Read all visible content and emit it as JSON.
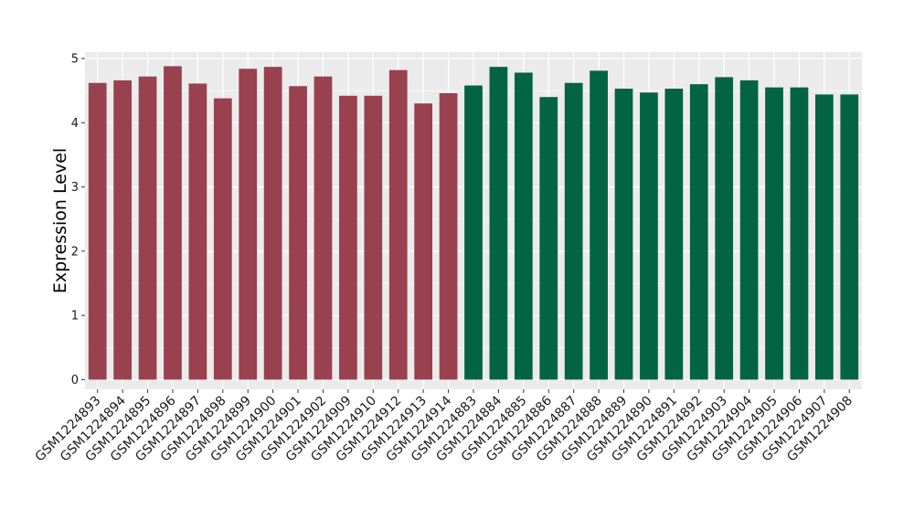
{
  "chart_data": {
    "type": "bar",
    "title": "",
    "xlabel": "",
    "ylabel": "Expression Level",
    "ylim": [
      -0.15,
      5.1
    ],
    "yticks": [
      0,
      1,
      2,
      3,
      4,
      5
    ],
    "grid": true,
    "legend": "none",
    "categories": [
      "GSM1224893",
      "GSM1224894",
      "GSM1224895",
      "GSM1224896",
      "GSM1224897",
      "GSM1224898",
      "GSM1224899",
      "GSM1224900",
      "GSM1224901",
      "GSM1224902",
      "GSM1224909",
      "GSM1224910",
      "GSM1224912",
      "GSM1224913",
      "GSM1224914",
      "GSM1224883",
      "GSM1224884",
      "GSM1224885",
      "GSM1224886",
      "GSM1224887",
      "GSM1224888",
      "GSM1224889",
      "GSM1224890",
      "GSM1224891",
      "GSM1224892",
      "GSM1224903",
      "GSM1224904",
      "GSM1224905",
      "GSM1224906",
      "GSM1224907",
      "GSM1224908"
    ],
    "values": [
      4.62,
      4.66,
      4.72,
      4.88,
      4.61,
      4.38,
      4.84,
      4.87,
      4.57,
      4.72,
      4.42,
      4.42,
      4.82,
      4.3,
      4.46,
      4.58,
      4.87,
      4.78,
      4.4,
      4.62,
      4.81,
      4.53,
      4.47,
      4.53,
      4.6,
      4.71,
      4.66,
      4.55,
      4.55,
      4.44,
      4.44
    ],
    "bar_colors": [
      "#99414f",
      "#99414f",
      "#99414f",
      "#99414f",
      "#99414f",
      "#99414f",
      "#99414f",
      "#99414f",
      "#99414f",
      "#99414f",
      "#99414f",
      "#99414f",
      "#99414f",
      "#99414f",
      "#99414f",
      "#036443",
      "#036443",
      "#036443",
      "#036443",
      "#036443",
      "#036443",
      "#036443",
      "#036443",
      "#036443",
      "#036443",
      "#036443",
      "#036443",
      "#036443",
      "#036443",
      "#036443",
      "#036443"
    ],
    "panel_background": "#ebebeb",
    "grid_color": "#ffffff"
  }
}
